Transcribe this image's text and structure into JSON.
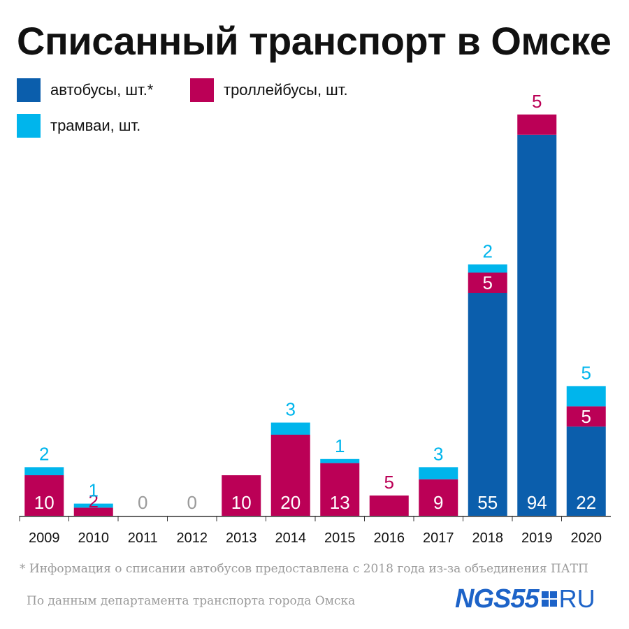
{
  "title": "Списанный транспорт в Омске",
  "colors": {
    "buses": "#0b5eac",
    "trolleybuses": "#bb0056",
    "trams": "#00b5ec",
    "zero_label": "#9a9a9a",
    "axis": "#333333"
  },
  "legend": [
    {
      "name": "автобусы, шт.*",
      "color": "#0b5eac"
    },
    {
      "name": "троллейбусы, шт.",
      "color": "#bb0056"
    },
    {
      "name": "трамваи, шт.",
      "color": "#00b5ec"
    }
  ],
  "chart_data": {
    "type": "bar",
    "stacked": true,
    "categories": [
      "2009",
      "2010",
      "2011",
      "2012",
      "2013",
      "2014",
      "2015",
      "2016",
      "2017",
      "2018",
      "2019",
      "2020"
    ],
    "series": [
      {
        "name": "автобусы, шт.*",
        "values": [
          0,
          0,
          0,
          0,
          0,
          0,
          0,
          0,
          0,
          55,
          94,
          22
        ]
      },
      {
        "name": "троллейбусы, шт.",
        "values": [
          10,
          2,
          0,
          0,
          10,
          20,
          13,
          5,
          9,
          5,
          5,
          5
        ]
      },
      {
        "name": "трамваи, шт.",
        "values": [
          2,
          1,
          0,
          0,
          0,
          3,
          1,
          0,
          3,
          2,
          0,
          5
        ]
      }
    ],
    "zero_labels": [
      "2011",
      "2012"
    ],
    "ylim": [
      0,
      100
    ],
    "grid": false,
    "legend_placement": "top-left"
  },
  "footnote": "* Информация о списании автобусов предоставлена с 2018 года из-за объединения ПАТП",
  "source": "По данным департамента транспорта города Омска",
  "logo": {
    "brand": "NGS55",
    "suffix": "RU"
  }
}
